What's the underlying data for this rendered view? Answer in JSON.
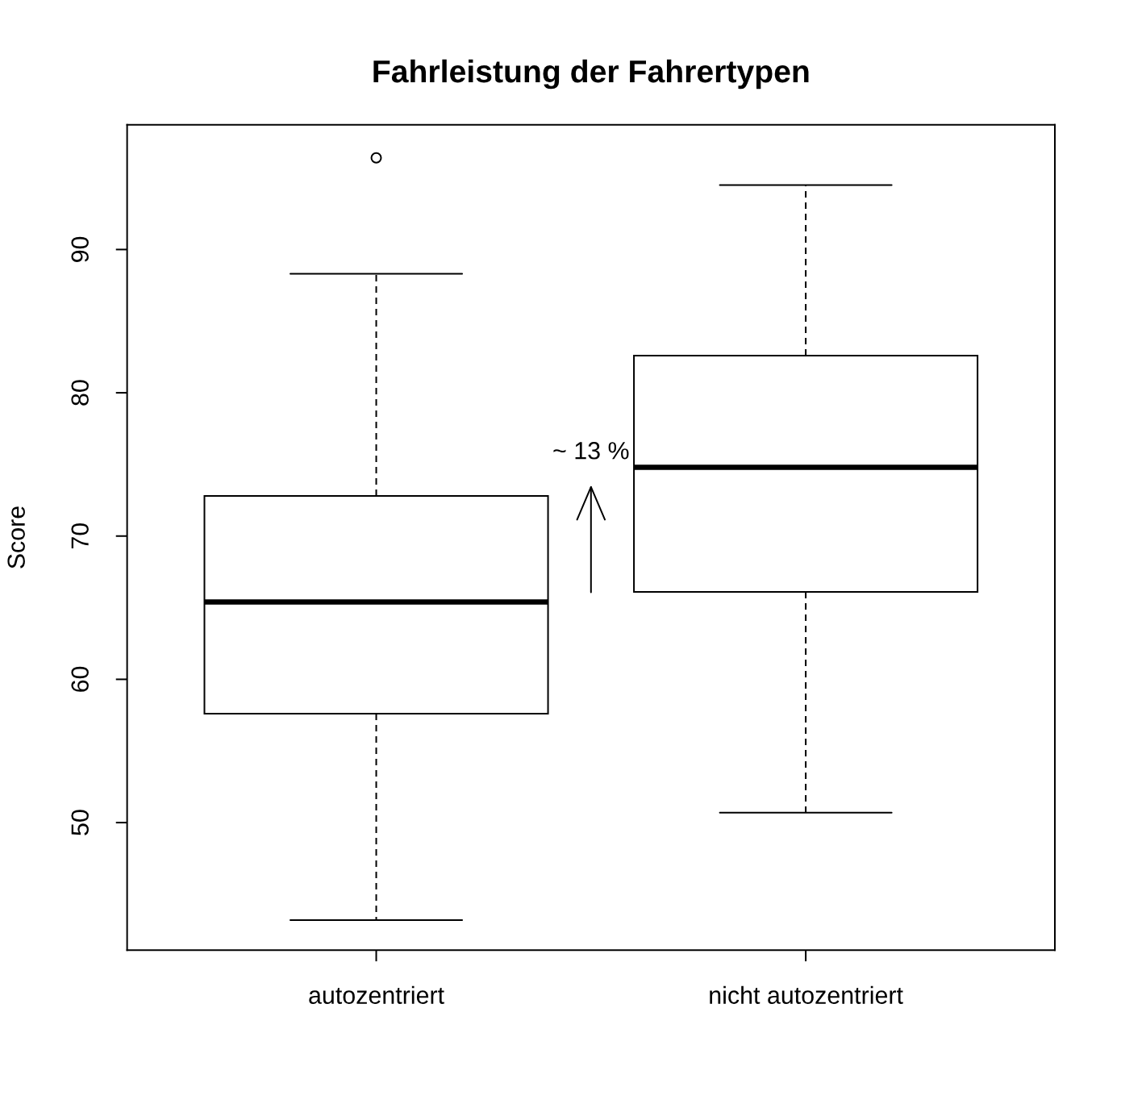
{
  "chart_data": {
    "type": "box",
    "title": "Fahrleistung der Fahrertypen",
    "ylabel": "Score",
    "categories": [
      "autozentriert",
      "nicht autozentriert"
    ],
    "boxes": [
      {
        "low": 43.2,
        "q1": 57.6,
        "median": 65.4,
        "q3": 72.8,
        "high": 88.3,
        "outliers": [
          96.4
        ]
      },
      {
        "low": 50.7,
        "q1": 66.1,
        "median": 74.8,
        "q3": 82.6,
        "high": 94.5
      }
    ],
    "color": "#000000",
    "ylim": [
      41.1,
      98.7
    ],
    "yticks": [
      50,
      60,
      70,
      80,
      90
    ],
    "annotations": [
      "~ 13 %"
    ]
  }
}
